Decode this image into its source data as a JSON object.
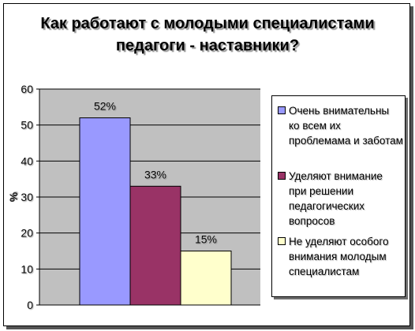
{
  "title_lines": [
    "Как работают с молодыми специалистами",
    "педагоги - наставники?"
  ],
  "chart_data": {
    "type": "bar",
    "title": "Как работают с молодыми специалистами педагоги - наставники?",
    "xlabel": "",
    "ylabel": "%",
    "ylim": [
      0,
      60
    ],
    "yticks": [
      0,
      10,
      20,
      30,
      40,
      50,
      60
    ],
    "grid": true,
    "legend_position": "right",
    "series": [
      {
        "name": "Очень внимательны ко всем их проблемама и заботам",
        "value": 52,
        "label": "52%",
        "color": "#9999ff"
      },
      {
        "name": "Уделяют внимание при решении педагогических вопросов",
        "value": 33,
        "label": "33%",
        "color": "#993366"
      },
      {
        "name": "Не уделяют особого внимания молодым специалистам",
        "value": 15,
        "label": "15%",
        "color": "#ffffcc"
      }
    ]
  },
  "legend": {
    "items": [
      {
        "lines": [
          "Очень внимательны",
          "ко всем их",
          "проблемама и заботам"
        ],
        "color": "#9999ff"
      },
      {
        "lines": [
          "Уделяют внимание",
          "при решении",
          "педагогических",
          "вопросов"
        ],
        "color": "#993366"
      },
      {
        "lines": [
          "Не уделяют особого",
          "внимания молодым",
          "специалистам"
        ],
        "color": "#ffffcc"
      }
    ]
  },
  "colors": {
    "plot_area": "#c0c0c0",
    "gridline": "#000000"
  }
}
